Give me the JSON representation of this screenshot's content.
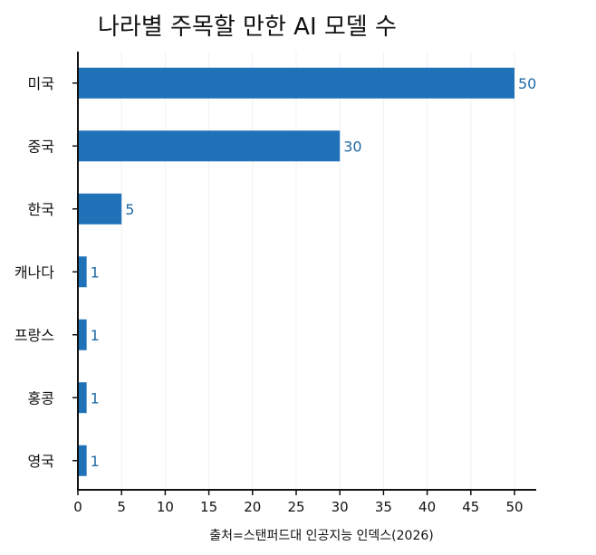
{
  "chart_data": {
    "type": "bar",
    "orientation": "horizontal",
    "title": "나라별 주목할 만한 AI 모델 수",
    "categories": [
      "미국",
      "중국",
      "한국",
      "캐나다",
      "프랑스",
      "홍콩",
      "영국"
    ],
    "values": [
      50,
      30,
      5,
      1,
      1,
      1,
      1
    ],
    "data_labels": [
      "50",
      "30",
      "5",
      "1",
      "1",
      "1",
      "1"
    ],
    "xlim": [
      0,
      52
    ],
    "xticks": [
      "0",
      "5",
      "10",
      "15",
      "20",
      "25",
      "30",
      "35",
      "40",
      "45",
      "50"
    ],
    "xlabel": "출처=스탠퍼드대 인공지능 인덱스(2026)",
    "ylabel": "",
    "grid": true,
    "bar_color": "#1f72b8",
    "label_color": "#1f6aa5"
  }
}
